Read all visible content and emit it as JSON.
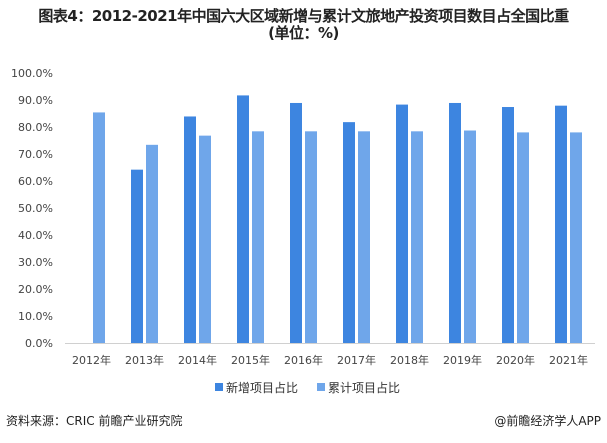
{
  "chart_data": {
    "type": "bar",
    "title": "图表4：2012-2021年中国六大区域新增与累计文旅地产投资项目数目占全国比重",
    "subtitle": "(单位：%)",
    "categories": [
      "2012年",
      "2013年",
      "2014年",
      "2015年",
      "2016年",
      "2017年",
      "2018年",
      "2019年",
      "2020年",
      "2021年"
    ],
    "series": [
      {
        "name": "新增项目占比",
        "color": "#3D85E0",
        "values": [
          null,
          64.2,
          83.9,
          91.7,
          88.9,
          81.8,
          88.3,
          88.9,
          87.4,
          87.9
        ]
      },
      {
        "name": "累计项目占比",
        "color": "#6FA6EA",
        "values": [
          85.4,
          73.4,
          76.8,
          78.4,
          78.4,
          78.4,
          78.4,
          78.7,
          78.0,
          78.0
        ]
      }
    ],
    "ylim": [
      0,
      100
    ],
    "yticks": [
      "0.0%",
      "10.0%",
      "20.0%",
      "30.0%",
      "40.0%",
      "50.0%",
      "60.0%",
      "70.0%",
      "80.0%",
      "90.0%",
      "100.0%"
    ],
    "grid": false,
    "legend_position": "bottom"
  },
  "footer": {
    "source": "资料来源：CRIC 前瞻产业研究院",
    "credit": "@前瞻经济学人APP"
  }
}
